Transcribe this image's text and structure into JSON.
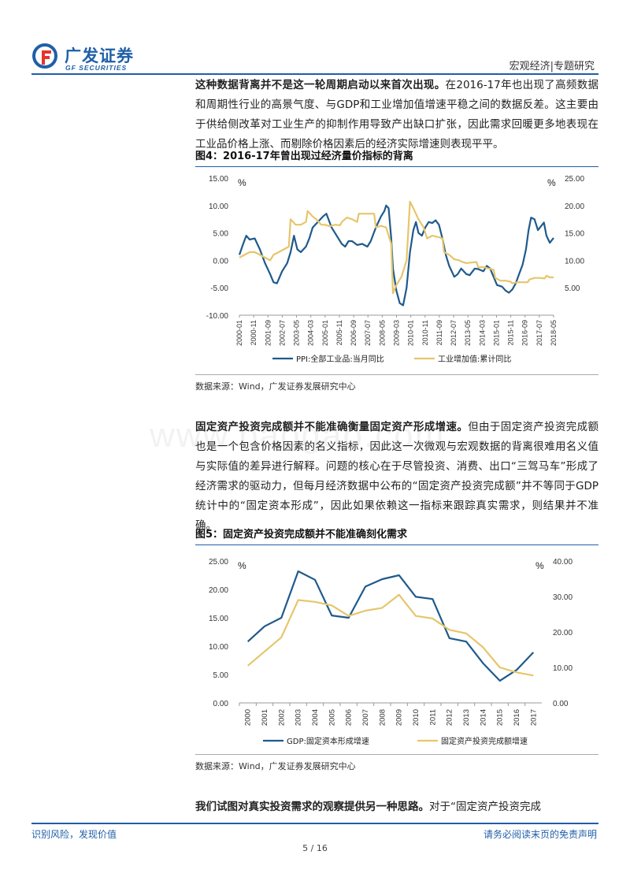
{
  "header": {
    "company_cn": "广发证券",
    "company_en": "GF SECURITIES",
    "section": "宏观经济|专题研究",
    "brand_color": "#1f5fa8",
    "logo_accent": "#e8332a"
  },
  "watermark": "www.baogao.com",
  "paragraphs": {
    "p1_bold": "这种数据背离并不是这一轮周期启动以来首次出现。",
    "p1_rest": "在2016-17年也出现了高频数据和周期性行业的高景气度、与GDP和工业增加值增速平稳之间的数据反差。这主要由于供给侧改革对工业生产的抑制作用导致产出缺口扩张，因此需求回暖更多地表现在工业品价格上涨、而剔除价格因素后的经济实际增速则表现平平。",
    "p2_bold": "固定资产投资完成额并不能准确衡量固定资产形成增速。",
    "p2_rest": "但由于固定资产投资完成额也是一个包含价格因素的名义指标，因此这一次微观与宏观数据的背离很难用名义值与实际值的差异进行解释。问题的核心在于尽管投资、消费、出口“三驾马车”形成了经济需求的驱动力，但每月经济数据中公布的“固定资产投资完成额”并不等同于GDP统计中的“固定资本形成”，因此如果依赖这一指标来跟踪真实需求，则结果并不准确。",
    "p3_bold": "我们试图对真实投资需求的观察提供另一种思路。",
    "p3_rest": "对于“固定资产投资完成"
  },
  "figures": {
    "fig4_title": "图4：2016-17年曾出现过经济量价指标的背离",
    "fig5_title": "图5：固定资产投资完成额并不能准确刻化需求",
    "source": "数据来源：Wind，广发证券发展研究中心"
  },
  "footer": {
    "left": "识别风险，发现价值",
    "right": "请务必阅读末页的免责声明",
    "page": "5 / 16"
  },
  "chart_data": [
    {
      "type": "line",
      "title": "图4：2016-17年曾出现过经济量价指标的背离",
      "left_unit": "%",
      "right_unit": "%",
      "ylim_left": [
        -10,
        15
      ],
      "ylim_right": [
        0,
        25
      ],
      "left_ticks": [
        "15.00",
        "10.00",
        "5.00",
        "0.00",
        "-5.00",
        "-10.00"
      ],
      "right_ticks": [
        "25.00",
        "20.00",
        "15.00",
        "10.00",
        "5.00"
      ],
      "x_labels": [
        "2000-01",
        "2000-11",
        "2001-09",
        "2002-07",
        "2003-05",
        "2004-03",
        "2005-01",
        "2005-11",
        "2006-09",
        "2007-07",
        "2008-05",
        "2009-03",
        "2010-01",
        "2010-11",
        "2011-09",
        "2012-07",
        "2013-05",
        "2014-03",
        "2015-01",
        "2015-11",
        "2016-09",
        "2017-07",
        "2018-05"
      ],
      "x_start": 2000.0,
      "x_end": 2018.42,
      "grid": false,
      "legend_position": "bottom",
      "series": [
        {
          "name": "PPI:全部工业品:当月同比",
          "axis": "left",
          "color": "#1f5a8c",
          "points": [
            [
              2000.0,
              1.0
            ],
            [
              2000.2,
              2.8
            ],
            [
              2000.4,
              4.5
            ],
            [
              2000.6,
              3.8
            ],
            [
              2000.9,
              4.0
            ],
            [
              2001.2,
              2.0
            ],
            [
              2001.5,
              -0.5
            ],
            [
              2001.8,
              -2.5
            ],
            [
              2002.0,
              -4.0
            ],
            [
              2002.2,
              -4.2
            ],
            [
              2002.5,
              -2.0
            ],
            [
              2002.8,
              -0.5
            ],
            [
              2003.0,
              1.5
            ],
            [
              2003.2,
              4.5
            ],
            [
              2003.4,
              2.0
            ],
            [
              2003.6,
              1.5
            ],
            [
              2003.9,
              2.5
            ],
            [
              2004.1,
              4.0
            ],
            [
              2004.3,
              6.0
            ],
            [
              2004.6,
              7.0
            ],
            [
              2004.9,
              8.0
            ],
            [
              2005.1,
              8.5
            ],
            [
              2005.4,
              6.0
            ],
            [
              2005.7,
              4.5
            ],
            [
              2006.0,
              3.0
            ],
            [
              2006.2,
              2.5
            ],
            [
              2006.4,
              3.5
            ],
            [
              2006.6,
              3.5
            ],
            [
              2006.9,
              2.8
            ],
            [
              2007.2,
              3.0
            ],
            [
              2007.5,
              2.5
            ],
            [
              2007.7,
              3.5
            ],
            [
              2008.0,
              6.0
            ],
            [
              2008.3,
              8.0
            ],
            [
              2008.5,
              9.0
            ],
            [
              2008.6,
              10.0
            ],
            [
              2008.75,
              9.5
            ],
            [
              2008.9,
              4.0
            ],
            [
              2009.0,
              -1.5
            ],
            [
              2009.2,
              -5.5
            ],
            [
              2009.4,
              -7.8
            ],
            [
              2009.6,
              -8.2
            ],
            [
              2009.8,
              -5.0
            ],
            [
              2010.0,
              1.5
            ],
            [
              2010.2,
              5.5
            ],
            [
              2010.35,
              7.0
            ],
            [
              2010.5,
              5.0
            ],
            [
              2010.7,
              4.5
            ],
            [
              2010.9,
              6.0
            ],
            [
              2011.1,
              7.0
            ],
            [
              2011.3,
              6.8
            ],
            [
              2011.5,
              7.3
            ],
            [
              2011.7,
              6.5
            ],
            [
              2011.9,
              4.0
            ],
            [
              2012.1,
              1.0
            ],
            [
              2012.3,
              -1.0
            ],
            [
              2012.6,
              -3.0
            ],
            [
              2012.8,
              -2.5
            ],
            [
              2013.0,
              -1.5
            ],
            [
              2013.3,
              -2.5
            ],
            [
              2013.5,
              -2.7
            ],
            [
              2013.8,
              -1.5
            ],
            [
              2014.0,
              -1.6
            ],
            [
              2014.3,
              -2.0
            ],
            [
              2014.5,
              -1.0
            ],
            [
              2014.7,
              -1.5
            ],
            [
              2014.9,
              -3.0
            ],
            [
              2015.1,
              -4.5
            ],
            [
              2015.4,
              -4.8
            ],
            [
              2015.6,
              -5.5
            ],
            [
              2015.8,
              -5.9
            ],
            [
              2016.0,
              -5.3
            ],
            [
              2016.2,
              -4.2
            ],
            [
              2016.4,
              -2.5
            ],
            [
              2016.6,
              -0.8
            ],
            [
              2016.8,
              2.0
            ],
            [
              2016.95,
              5.5
            ],
            [
              2017.1,
              7.8
            ],
            [
              2017.3,
              7.5
            ],
            [
              2017.5,
              5.5
            ],
            [
              2017.7,
              6.3
            ],
            [
              2017.85,
              6.9
            ],
            [
              2018.0,
              4.5
            ],
            [
              2018.2,
              3.2
            ],
            [
              2018.42,
              4.1
            ]
          ]
        },
        {
          "name": "工业增加值:累计同比",
          "axis": "right",
          "color": "#e6c66b",
          "points": [
            [
              2000.0,
              10.5
            ],
            [
              2000.3,
              11.0
            ],
            [
              2000.6,
              11.5
            ],
            [
              2000.9,
              11.5
            ],
            [
              2001.2,
              11.0
            ],
            [
              2001.5,
              10.5
            ],
            [
              2001.8,
              10.0
            ],
            [
              2002.0,
              11.0
            ],
            [
              2002.3,
              11.5
            ],
            [
              2002.6,
              12.0
            ],
            [
              2002.9,
              12.5
            ],
            [
              2003.0,
              17.5
            ],
            [
              2003.3,
              16.5
            ],
            [
              2003.6,
              16.5
            ],
            [
              2003.9,
              17.0
            ],
            [
              2004.0,
              19.0
            ],
            [
              2004.3,
              18.0
            ],
            [
              2004.5,
              17.5
            ],
            [
              2004.8,
              16.5
            ],
            [
              2005.0,
              16.5
            ],
            [
              2005.3,
              16.2
            ],
            [
              2005.6,
              16.5
            ],
            [
              2005.9,
              16.4
            ],
            [
              2006.0,
              17.0
            ],
            [
              2006.3,
              17.8
            ],
            [
              2006.6,
              17.5
            ],
            [
              2006.9,
              17.0
            ],
            [
              2007.0,
              18.5
            ],
            [
              2007.3,
              18.5
            ],
            [
              2007.6,
              18.5
            ],
            [
              2007.9,
              18.5
            ],
            [
              2008.0,
              16.0
            ],
            [
              2008.3,
              16.3
            ],
            [
              2008.6,
              16.0
            ],
            [
              2008.9,
              13.0
            ],
            [
              2009.0,
              4.0
            ],
            [
              2009.2,
              5.5
            ],
            [
              2009.5,
              7.0
            ],
            [
              2009.8,
              10.0
            ],
            [
              2010.0,
              20.7
            ],
            [
              2010.2,
              19.5
            ],
            [
              2010.5,
              17.5
            ],
            [
              2010.8,
              16.0
            ],
            [
              2011.0,
              14.0
            ],
            [
              2011.3,
              14.5
            ],
            [
              2011.6,
              14.3
            ],
            [
              2011.9,
              14.0
            ],
            [
              2012.0,
              11.5
            ],
            [
              2012.3,
              11.0
            ],
            [
              2012.6,
              10.2
            ],
            [
              2012.9,
              10.0
            ],
            [
              2013.0,
              9.8
            ],
            [
              2013.3,
              9.5
            ],
            [
              2013.6,
              9.6
            ],
            [
              2013.9,
              9.7
            ],
            [
              2014.0,
              8.7
            ],
            [
              2014.3,
              8.8
            ],
            [
              2014.6,
              8.5
            ],
            [
              2014.9,
              8.3
            ],
            [
              2015.0,
              6.8
            ],
            [
              2015.3,
              6.3
            ],
            [
              2015.6,
              6.3
            ],
            [
              2015.9,
              6.1
            ],
            [
              2016.0,
              5.8
            ],
            [
              2016.3,
              6.0
            ],
            [
              2016.6,
              6.0
            ],
            [
              2016.9,
              6.0
            ],
            [
              2017.0,
              6.5
            ],
            [
              2017.3,
              6.8
            ],
            [
              2017.6,
              6.8
            ],
            [
              2017.9,
              6.7
            ],
            [
              2018.0,
              7.2
            ],
            [
              2018.2,
              6.9
            ],
            [
              2018.42,
              6.9
            ]
          ]
        }
      ]
    },
    {
      "type": "line",
      "title": "图5：固定资产投资完成额并不能准确刻化需求",
      "left_unit": "%",
      "right_unit": "%",
      "ylim_left": [
        0,
        25
      ],
      "ylim_right": [
        0,
        40
      ],
      "left_ticks": [
        "25.00",
        "20.00",
        "15.00",
        "10.00",
        "5.00",
        "0.00"
      ],
      "right_ticks": [
        "40.00",
        "30.00",
        "20.00",
        "10.00",
        "0.00"
      ],
      "categories": [
        "2000",
        "2001",
        "2002",
        "2003",
        "2004",
        "2005",
        "2006",
        "2007",
        "2008",
        "2009",
        "2010",
        "2011",
        "2012",
        "2013",
        "2014",
        "2015",
        "2016",
        "2017"
      ],
      "grid": false,
      "legend_position": "bottom",
      "series": [
        {
          "name": "GDP:固定资本形成增速",
          "axis": "left",
          "color": "#1f5a8c",
          "values": [
            10.8,
            13.5,
            15.0,
            23.2,
            21.7,
            15.4,
            15.0,
            20.5,
            21.8,
            22.5,
            18.7,
            18.3,
            11.4,
            10.8,
            7.0,
            3.9,
            5.8,
            8.9
          ]
        },
        {
          "name": "固定资产投资完成额增速",
          "axis": "right",
          "color": "#e6c66b",
          "values": [
            10.5,
            14.5,
            18.5,
            29.0,
            28.5,
            27.5,
            24.5,
            26.0,
            26.8,
            30.5,
            24.5,
            23.8,
            20.6,
            19.6,
            15.7,
            10.0,
            8.6,
            7.7
          ]
        }
      ]
    }
  ]
}
